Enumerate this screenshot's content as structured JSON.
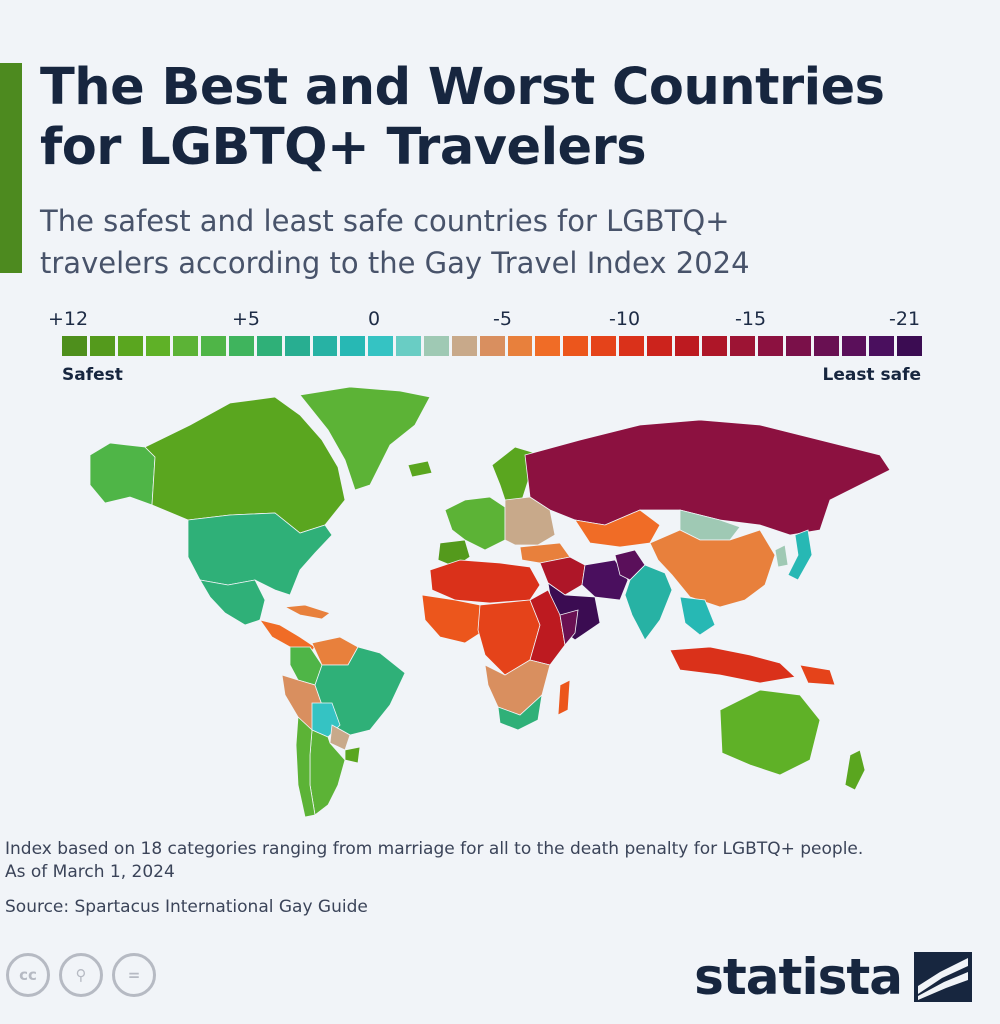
{
  "header": {
    "title_lines": [
      "The Best and Worst Countries",
      "for LGBTQ+ Travelers"
    ],
    "subtitle_lines": [
      "The safest and least safe countries for LGBTQ+",
      "travelers according to the Gay Travel Index 2024"
    ]
  },
  "legend": {
    "ticks": [
      "+12",
      "+5",
      "0",
      "-5",
      "-10",
      "-15",
      "-21"
    ],
    "low_label": "Safest",
    "high_label": "Least safe",
    "scale_min": -21,
    "scale_max": 12,
    "colors": [
      "#4e8f1c",
      "#549a1c",
      "#5aa61f",
      "#5fb127",
      "#5cb336",
      "#4fb547",
      "#3fb45d",
      "#2fb078",
      "#28ae91",
      "#27b2a4",
      "#27b8b4",
      "#35c3c3",
      "#69cdc4",
      "#9fc9b4",
      "#c8a98a",
      "#d98f5f",
      "#e8803c",
      "#f06c26",
      "#ec561c",
      "#e5431a",
      "#da311a",
      "#cc231c",
      "#bd1a20",
      "#ae1628",
      "#9d1434",
      "#8c1140",
      "#7a1049",
      "#691052",
      "#5a0f5a",
      "#4a0f5e",
      "#3b0c52"
    ]
  },
  "map_regions": [
    {
      "name": "Alaska",
      "score": 6
    },
    {
      "name": "Canada",
      "score": 10
    },
    {
      "name": "Greenland",
      "score": 8
    },
    {
      "name": "Iceland",
      "score": 10
    },
    {
      "name": "United States",
      "score": 4
    },
    {
      "name": "Mexico",
      "score": 4
    },
    {
      "name": "Central America",
      "score": -7
    },
    {
      "name": "Caribbean",
      "score": -6
    },
    {
      "name": "Colombia",
      "score": 6
    },
    {
      "name": "Venezuela",
      "score": -6
    },
    {
      "name": "Brazil",
      "score": 4
    },
    {
      "name": "Peru",
      "score": -5
    },
    {
      "name": "Bolivia",
      "score": 0
    },
    {
      "name": "Paraguay",
      "score": -3
    },
    {
      "name": "Argentina",
      "score": 8
    },
    {
      "name": "Chile",
      "score": 8
    },
    {
      "name": "Uruguay",
      "score": 10
    },
    {
      "name": "Scandinavia",
      "score": 10
    },
    {
      "name": "Western Europe",
      "score": 8
    },
    {
      "name": "Iberia",
      "score": 11
    },
    {
      "name": "Eastern Europe",
      "score": -3
    },
    {
      "name": "Turkey",
      "score": -6
    },
    {
      "name": "Russia",
      "score": -16
    },
    {
      "name": "Kazakhstan",
      "score": -7
    },
    {
      "name": "Mongolia",
      "score": -2
    },
    {
      "name": "China",
      "score": -6
    },
    {
      "name": "Japan",
      "score": 1
    },
    {
      "name": "Korea",
      "score": -2
    },
    {
      "name": "Middle East",
      "score": -13
    },
    {
      "name": "Saudi Arabia",
      "score": -21
    },
    {
      "name": "Iran",
      "score": -20
    },
    {
      "name": "Afghanistan",
      "score": -19
    },
    {
      "name": "India",
      "score": 2
    },
    {
      "name": "Southeast Asia",
      "score": 1
    },
    {
      "name": "Indonesia",
      "score": -10
    },
    {
      "name": "Papua New Guinea",
      "score": -9
    },
    {
      "name": "Australia",
      "score": 9
    },
    {
      "name": "New Zealand",
      "score": 10
    },
    {
      "name": "North Africa",
      "score": -10
    },
    {
      "name": "West Africa",
      "score": -8
    },
    {
      "name": "Central Africa",
      "score": -9
    },
    {
      "name": "East Africa",
      "score": -12
    },
    {
      "name": "Somalia",
      "score": -18
    },
    {
      "name": "Southern Africa",
      "score": -5
    },
    {
      "name": "South Africa",
      "score": 4
    },
    {
      "name": "Madagascar",
      "score": -8
    }
  ],
  "footer": {
    "note_lines": [
      "Index based on 18 categories ranging from marriage for all to the death penalty for LGBTQ+ people.",
      "As of March 1, 2024"
    ],
    "source": "Source: Spartacus International Gay Guide",
    "license_icons": [
      "cc-icon",
      "attribution-icon",
      "no-derivatives-icon"
    ],
    "license_glyphs": [
      "cc",
      "⚲",
      "="
    ],
    "brand": "statista"
  }
}
